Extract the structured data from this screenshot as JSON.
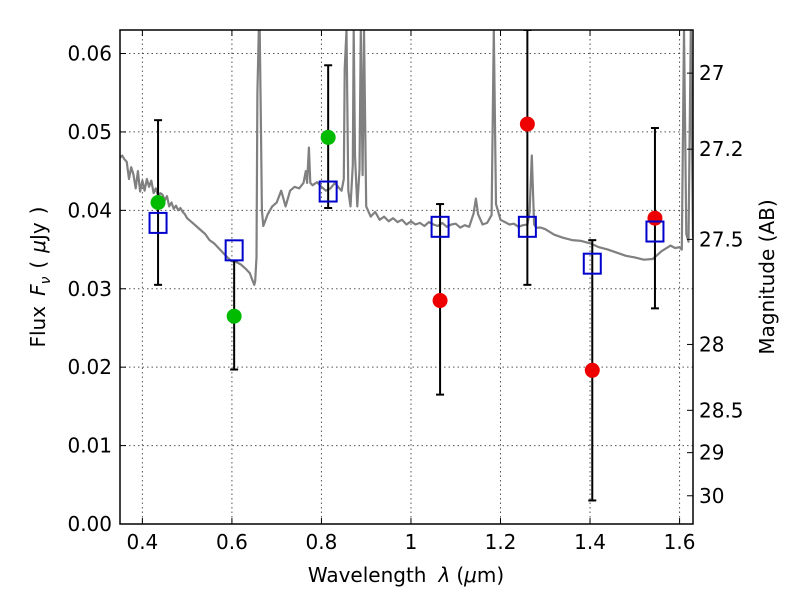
{
  "chart_data": {
    "type": "scatter",
    "xlabel": "Wavelength",
    "xlabel_symbol": "λ",
    "xlabel_unit_prefix": "(",
    "xlabel_unit_mu": "μ",
    "xlabel_unit_suffix": "m)",
    "ylabel": "Flux",
    "ylabel_symbol": "F",
    "ylabel_subscript": "ν",
    "ylabel_unit_open": "(",
    "ylabel_unit_mu": "μ",
    "ylabel_unit_rest": "Jy",
    "ylabel_unit_close": ")",
    "y2label": "Magnitude (AB)",
    "xlim": [
      0.35,
      1.63
    ],
    "ylim": [
      0.0,
      0.063
    ],
    "grid": true,
    "x_ticks": [
      0.4,
      0.6,
      0.8,
      1.0,
      1.2,
      1.4,
      1.6
    ],
    "x_tick_labels": [
      "0.4",
      "0.6",
      "0.8",
      "1",
      "1.2",
      "1.4",
      "1.6"
    ],
    "y_ticks": [
      0.0,
      0.01,
      0.02,
      0.03,
      0.04,
      0.05,
      0.06
    ],
    "y_tick_labels": [
      "0.00",
      "0.01",
      "0.02",
      "0.03",
      "0.04",
      "0.05",
      "0.06"
    ],
    "y2_ticks": [
      {
        "label": "27",
        "flux": 0.0575
      },
      {
        "label": "27.2",
        "flux": 0.0478
      },
      {
        "label": "27.5",
        "flux": 0.0363
      },
      {
        "label": "28",
        "flux": 0.0229
      },
      {
        "label": "28.5",
        "flux": 0.0145
      },
      {
        "label": "29",
        "flux": 0.0091
      },
      {
        "label": "30",
        "flux": 0.0036
      }
    ],
    "colors": {
      "green": "#00bb00",
      "red": "#ee0000",
      "model_box": "#0000cc",
      "spectrum": "#808080"
    },
    "green_points": [
      {
        "x": 0.435,
        "y": 0.041
      },
      {
        "x": 0.605,
        "y": 0.0265
      },
      {
        "x": 0.815,
        "y": 0.0493
      }
    ],
    "red_points": [
      {
        "x": 1.065,
        "y": 0.0285
      },
      {
        "x": 1.26,
        "y": 0.051
      },
      {
        "x": 1.405,
        "y": 0.0196
      },
      {
        "x": 1.545,
        "y": 0.039
      }
    ],
    "error_bars": [
      {
        "x": 0.435,
        "low": 0.0305,
        "high": 0.0515
      },
      {
        "x": 0.605,
        "low": 0.0197,
        "high": 0.0336
      },
      {
        "x": 0.815,
        "low": 0.0403,
        "high": 0.0585
      },
      {
        "x": 1.065,
        "low": 0.0165,
        "high": 0.0408
      },
      {
        "x": 1.26,
        "low": 0.0305,
        "high": 0.063
      },
      {
        "x": 1.405,
        "low": 0.003,
        "high": 0.0362
      },
      {
        "x": 1.545,
        "low": 0.0275,
        "high": 0.0505
      }
    ],
    "model_points": [
      {
        "x": 0.435,
        "y": 0.0384
      },
      {
        "x": 0.605,
        "y": 0.0349
      },
      {
        "x": 0.815,
        "y": 0.0424
      },
      {
        "x": 1.065,
        "y": 0.0379
      },
      {
        "x": 1.26,
        "y": 0.0379
      },
      {
        "x": 1.405,
        "y": 0.0332
      },
      {
        "x": 1.545,
        "y": 0.0373
      }
    ],
    "spectrum": [
      [
        0.35,
        0.0467
      ],
      [
        0.355,
        0.047
      ],
      [
        0.36,
        0.0465
      ],
      [
        0.365,
        0.0462
      ],
      [
        0.37,
        0.044
      ],
      [
        0.375,
        0.0455
      ],
      [
        0.38,
        0.0446
      ],
      [
        0.385,
        0.0428
      ],
      [
        0.39,
        0.045
      ],
      [
        0.395,
        0.0424
      ],
      [
        0.4,
        0.0438
      ],
      [
        0.405,
        0.0425
      ],
      [
        0.41,
        0.044
      ],
      [
        0.415,
        0.043
      ],
      [
        0.42,
        0.0438
      ],
      [
        0.425,
        0.0422
      ],
      [
        0.43,
        0.0428
      ],
      [
        0.435,
        0.0418
      ],
      [
        0.44,
        0.0422
      ],
      [
        0.445,
        0.042
      ],
      [
        0.45,
        0.0413
      ],
      [
        0.455,
        0.0418
      ],
      [
        0.46,
        0.0405
      ],
      [
        0.465,
        0.041
      ],
      [
        0.47,
        0.0402
      ],
      [
        0.475,
        0.0406
      ],
      [
        0.48,
        0.04
      ],
      [
        0.485,
        0.0403
      ],
      [
        0.49,
        0.0398
      ],
      [
        0.495,
        0.0395
      ],
      [
        0.5,
        0.039
      ],
      [
        0.51,
        0.0385
      ],
      [
        0.52,
        0.038
      ],
      [
        0.53,
        0.0375
      ],
      [
        0.54,
        0.037
      ],
      [
        0.55,
        0.0362
      ],
      [
        0.56,
        0.0358
      ],
      [
        0.57,
        0.0352
      ],
      [
        0.58,
        0.0346
      ],
      [
        0.59,
        0.034
      ],
      [
        0.6,
        0.0335
      ],
      [
        0.61,
        0.0334
      ],
      [
        0.62,
        0.0331
      ],
      [
        0.63,
        0.0326
      ],
      [
        0.64,
        0.032
      ],
      [
        0.645,
        0.0312
      ],
      [
        0.65,
        0.0305
      ],
      [
        0.652,
        0.031
      ],
      [
        0.655,
        0.034
      ],
      [
        0.657,
        0.055
      ],
      [
        0.66,
        0.063
      ],
      [
        0.662,
        0.063
      ],
      [
        0.665,
        0.05
      ],
      [
        0.667,
        0.04
      ],
      [
        0.67,
        0.038
      ],
      [
        0.68,
        0.0395
      ],
      [
        0.69,
        0.0405
      ],
      [
        0.7,
        0.041
      ],
      [
        0.71,
        0.0425
      ],
      [
        0.72,
        0.0405
      ],
      [
        0.73,
        0.0425
      ],
      [
        0.74,
        0.043
      ],
      [
        0.75,
        0.0428
      ],
      [
        0.76,
        0.0435
      ],
      [
        0.765,
        0.045
      ],
      [
        0.768,
        0.0435
      ],
      [
        0.772,
        0.048
      ],
      [
        0.775,
        0.0435
      ],
      [
        0.78,
        0.0432
      ],
      [
        0.79,
        0.0436
      ],
      [
        0.8,
        0.043
      ],
      [
        0.81,
        0.0425
      ],
      [
        0.82,
        0.0428
      ],
      [
        0.83,
        0.0435
      ],
      [
        0.84,
        0.0428
      ],
      [
        0.845,
        0.0425
      ],
      [
        0.85,
        0.044
      ],
      [
        0.852,
        0.058
      ],
      [
        0.856,
        0.063
      ],
      [
        0.86,
        0.0425
      ],
      [
        0.865,
        0.0405
      ],
      [
        0.87,
        0.0458
      ],
      [
        0.872,
        0.063
      ],
      [
        0.875,
        0.047
      ],
      [
        0.88,
        0.0405
      ],
      [
        0.885,
        0.0452
      ],
      [
        0.888,
        0.063
      ],
      [
        0.892,
        0.0445
      ],
      [
        0.895,
        0.063
      ],
      [
        0.9,
        0.0405
      ],
      [
        0.91,
        0.0392
      ],
      [
        0.92,
        0.0398
      ],
      [
        0.93,
        0.0388
      ],
      [
        0.94,
        0.0392
      ],
      [
        0.95,
        0.0386
      ],
      [
        0.96,
        0.039
      ],
      [
        0.97,
        0.0385
      ],
      [
        0.98,
        0.0388
      ],
      [
        0.99,
        0.0382
      ],
      [
        1.0,
        0.0386
      ],
      [
        1.01,
        0.0382
      ],
      [
        1.02,
        0.0384
      ],
      [
        1.03,
        0.038
      ],
      [
        1.04,
        0.0385
      ],
      [
        1.05,
        0.0382
      ],
      [
        1.06,
        0.038
      ],
      [
        1.07,
        0.0384
      ],
      [
        1.08,
        0.0379
      ],
      [
        1.09,
        0.0382
      ],
      [
        1.1,
        0.0383
      ],
      [
        1.11,
        0.0378
      ],
      [
        1.12,
        0.0381
      ],
      [
        1.13,
        0.0379
      ],
      [
        1.14,
        0.0396
      ],
      [
        1.145,
        0.0415
      ],
      [
        1.15,
        0.0395
      ],
      [
        1.16,
        0.0382
      ],
      [
        1.17,
        0.0384
      ],
      [
        1.18,
        0.0394
      ],
      [
        1.185,
        0.063
      ],
      [
        1.19,
        0.0408
      ],
      [
        1.2,
        0.0388
      ],
      [
        1.21,
        0.0385
      ],
      [
        1.22,
        0.0382
      ],
      [
        1.23,
        0.0383
      ],
      [
        1.24,
        0.0379
      ],
      [
        1.25,
        0.0381
      ],
      [
        1.26,
        0.0382
      ],
      [
        1.265,
        0.0398
      ],
      [
        1.27,
        0.047
      ],
      [
        1.275,
        0.0382
      ],
      [
        1.28,
        0.0378
      ],
      [
        1.29,
        0.0378
      ],
      [
        1.3,
        0.0376
      ],
      [
        1.32,
        0.0369
      ],
      [
        1.34,
        0.0365
      ],
      [
        1.36,
        0.0362
      ],
      [
        1.38,
        0.0361
      ],
      [
        1.4,
        0.0358
      ],
      [
        1.42,
        0.0353
      ],
      [
        1.44,
        0.035
      ],
      [
        1.46,
        0.0346
      ],
      [
        1.48,
        0.0342
      ],
      [
        1.5,
        0.034
      ],
      [
        1.52,
        0.0337
      ],
      [
        1.54,
        0.0338
      ],
      [
        1.56,
        0.0348
      ],
      [
        1.58,
        0.0355
      ],
      [
        1.59,
        0.0352
      ],
      [
        1.6,
        0.0353
      ],
      [
        1.605,
        0.035
      ],
      [
        1.61,
        0.063
      ],
      [
        1.615,
        0.037
      ],
      [
        1.62,
        0.036
      ],
      [
        1.625,
        0.063
      ],
      [
        1.63,
        0.0365
      ]
    ]
  }
}
